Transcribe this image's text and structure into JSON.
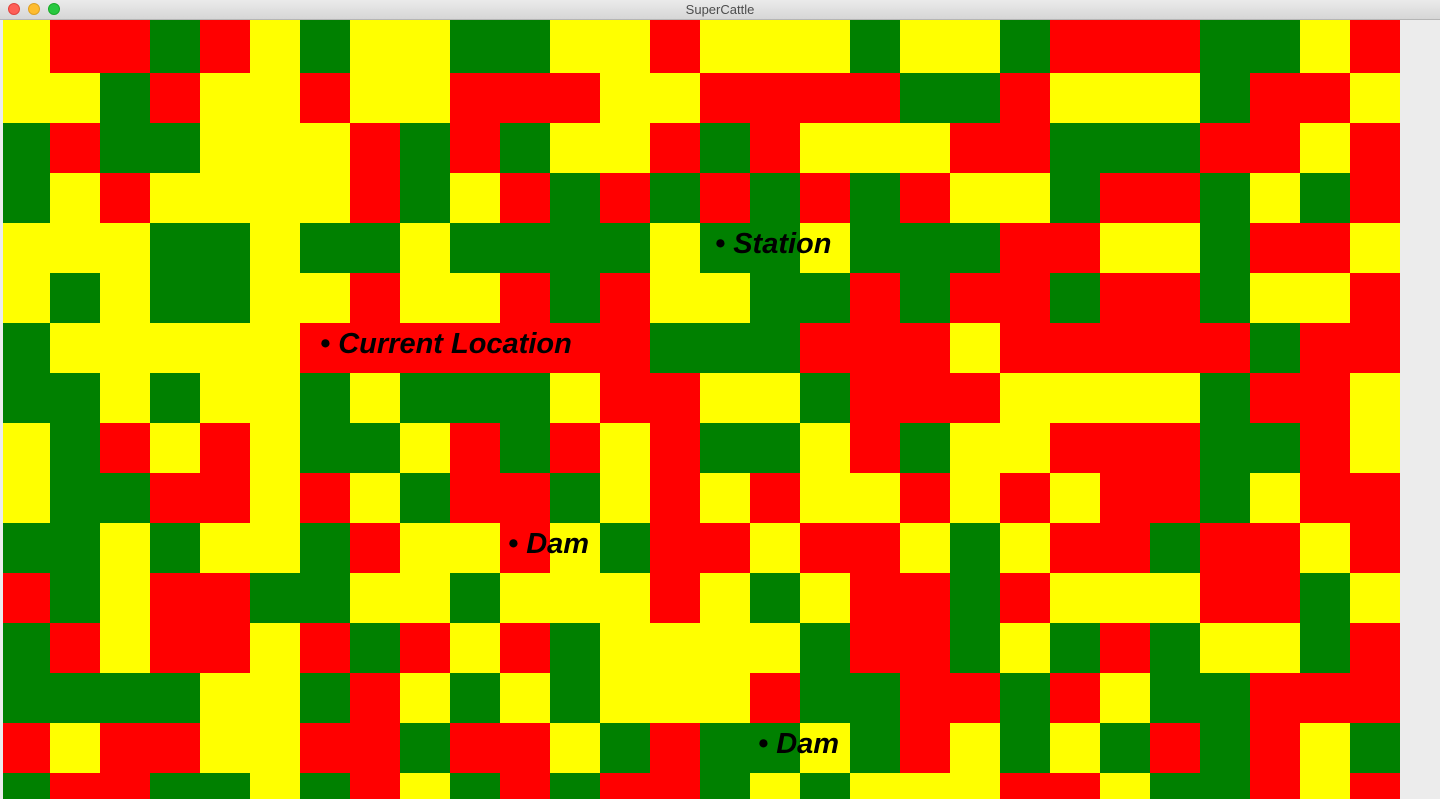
{
  "window": {
    "title": "SuperCattle"
  },
  "palette": {
    "Y": "#ffff00",
    "R": "#ff0000",
    "G": "#008000"
  },
  "grid": {
    "rows": [
      "YRRGRYGYYGGYYRYYYGYYGRRRGGYR",
      "YYGRYYRYYRRRYYRRRRGGRYYYGRRY",
      "GRGGYYYRGRGYYRGRYYYRRGGGRRYR",
      "GYRYYYYRGYRGRGRGRGRYYGRRGYGR",
      "YYYGGYGGYGGGGYGGYGGGRRYYGRRY",
      "YGYGGYYRYYRGRYYGGRGRRGRRGYYR",
      "GYYYYYRRRRRRRGGGRRRYRRRRRGRR",
      "GGYGYYGYGGGYRRYYGRRRYYYYGRRY",
      "YGRYRYGGYRGRYRGGYRGYYRRRGGRY",
      "YGGRRYRYGRRGYRYRYYRYRYRRGYRR",
      "GGYGYYGRYYRYGRRYRRYGYRRGRRYR",
      "RGYRRGGYYGYYYRYGYRRGRYYYRRGY",
      "GRYRRYRGRYRGYYYYGRRGYGRGYYGR",
      "GGGGYYGRYGYGYYYRGGRRGRYGGRRR",
      "RYRRYYRRGRRYGRGGYGRYGYGRGRYG",
      "GRRGGYGRYGRGRRGYGYYYRRYGGRYR"
    ]
  },
  "markers": [
    {
      "label": "• Station",
      "color": "#000000"
    },
    {
      "label": "• Current Location",
      "color": "#000000"
    },
    {
      "label": "• Dam",
      "color": "#000000"
    },
    {
      "label": "• Dam",
      "color": "#000000"
    }
  ]
}
